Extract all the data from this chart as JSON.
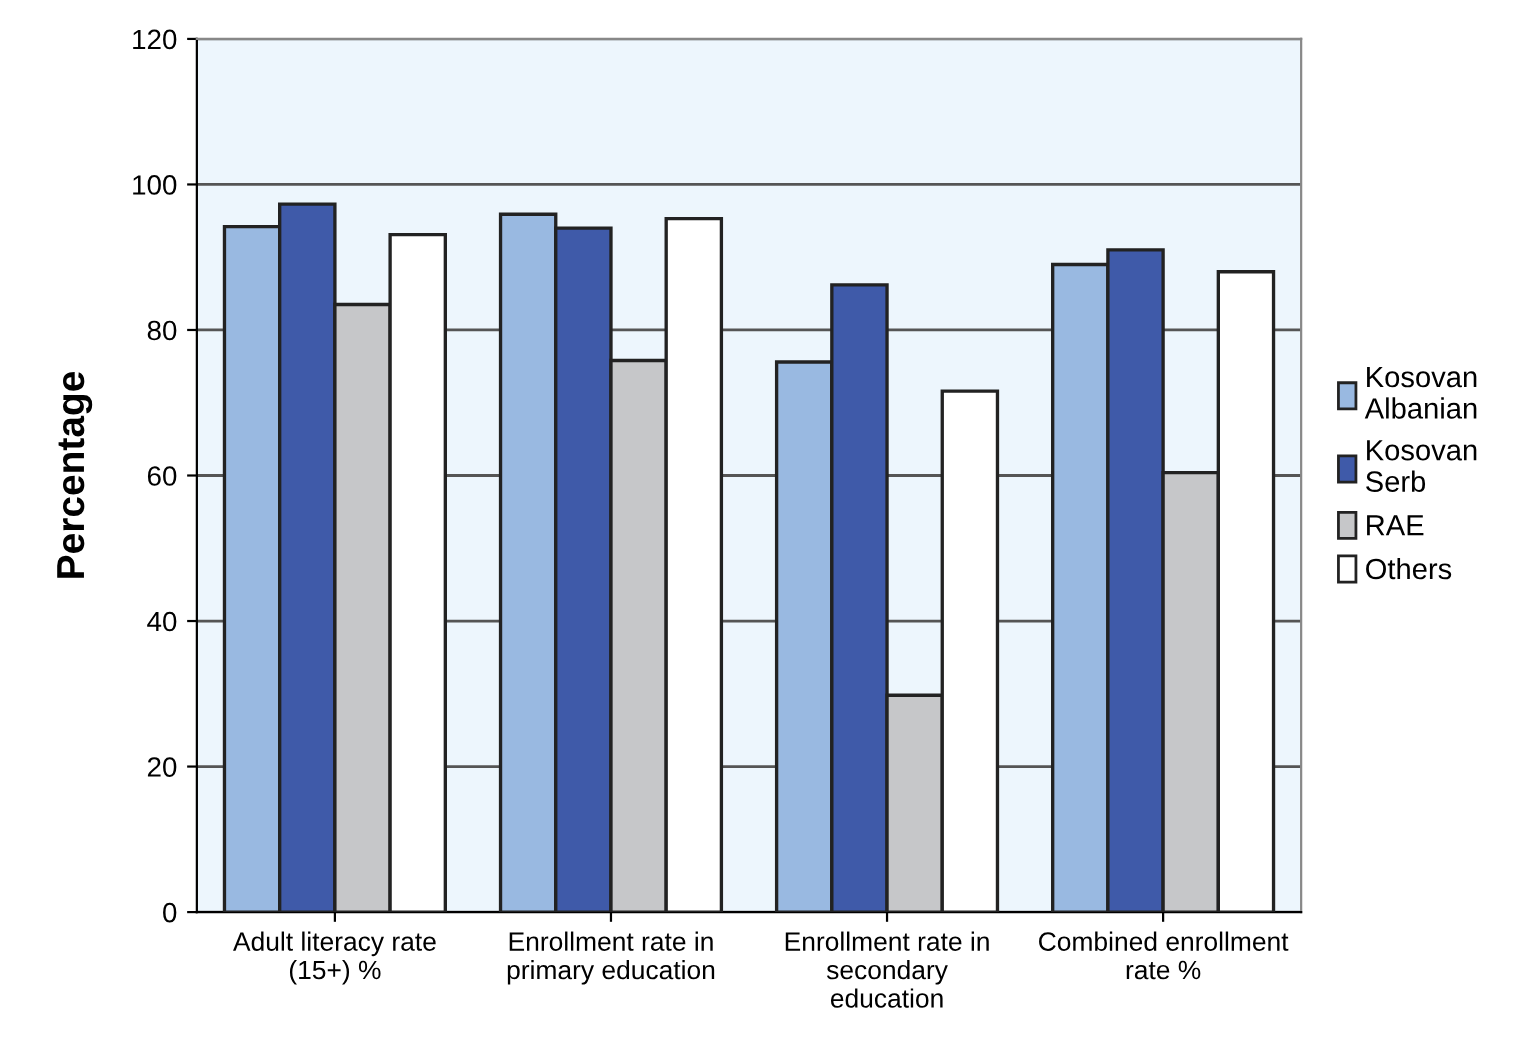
{
  "chart_data": {
    "type": "bar",
    "ylabel": "Percentage",
    "categories": [
      "Adult literacy rate\n(15+) %",
      "Enrollment rate in\nprimary education",
      "Enrollment rate in\nsecondary\neducation",
      "Combined enrollment\nrate %"
    ],
    "series": [
      {
        "name": "Kosovan\nAlbanian",
        "color": "#99b9e1",
        "values": [
          94.2,
          95.9,
          75.6,
          89
        ]
      },
      {
        "name": "Kosovan\nSerb",
        "color": "#3f5aa9",
        "values": [
          97.3,
          94,
          86.2,
          91
        ]
      },
      {
        "name": "RAE",
        "color": "#c6c7c9",
        "values": [
          83.5,
          75.8,
          29.8,
          60.4
        ]
      },
      {
        "name": "Others",
        "color": "#ffffff",
        "values": [
          93.1,
          95.3,
          71.6,
          88
        ]
      }
    ],
    "ylim": [
      0,
      120
    ],
    "yticks": [
      0,
      20,
      40,
      60,
      80,
      100,
      120
    ],
    "grid": "y",
    "legend": "right"
  }
}
